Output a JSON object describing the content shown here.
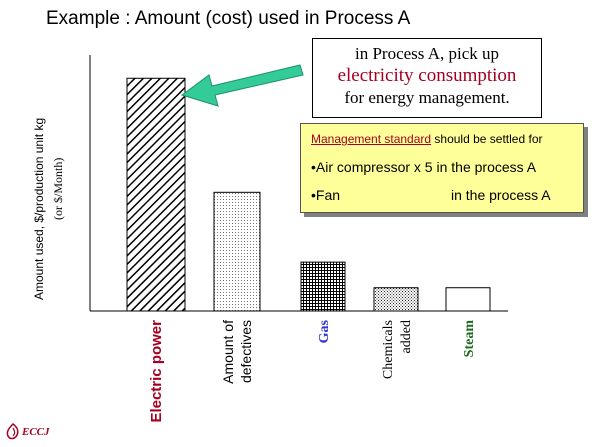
{
  "title": "Example : Amount (cost) used in Process A",
  "chart_data": {
    "type": "bar",
    "title": "",
    "ylabel_main": "Amount used, $/production unit kg",
    "ylabel_sub": "(or $/Month)",
    "categories": [
      "Electric power",
      "Amount of defectives",
      "Gas",
      "Chemicals added",
      "Steam"
    ],
    "category_lines": [
      [
        "Electric power"
      ],
      [
        "Amount of",
        "defectives"
      ],
      [
        "Gas"
      ],
      [
        "Chemicals",
        "added"
      ],
      [
        "Steam"
      ]
    ],
    "values": [
      100,
      51,
      21,
      10,
      10
    ],
    "ylim": [
      0,
      110
    ],
    "grid": false,
    "label_colors": [
      "#a50021",
      "#000000",
      "#3333cc",
      "#000000",
      "#1e6b1e"
    ],
    "patterns": [
      "diagonal-hatch",
      "fine-dots",
      "cross-hatch",
      "dots",
      "none"
    ]
  },
  "callout": {
    "line1": "in Process A, pick up",
    "line2": "electricity consumption",
    "line3": "for energy management."
  },
  "management": {
    "head_underlined": "Management standard",
    "head_rest": " should be settled for",
    "bullet1": "•Air compressor x 5 in the process A",
    "bullet2_item": "•Fan",
    "bullet2_place": "in the process A"
  },
  "logo": {
    "text": "ECCJ"
  },
  "colors": {
    "arrow": "#33cc99",
    "callout_emphasis": "#a50021",
    "box_fill": "#ffff99"
  }
}
